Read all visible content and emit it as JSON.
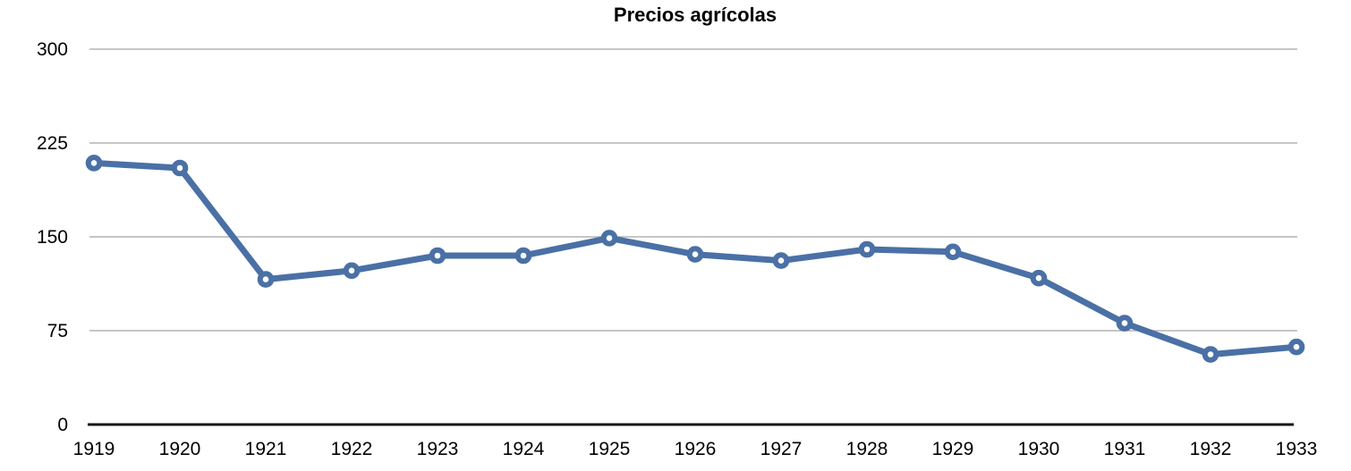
{
  "chart_data": {
    "type": "line",
    "title": "Precios agrícolas",
    "x": [
      1919,
      1920,
      1921,
      1922,
      1923,
      1924,
      1925,
      1926,
      1927,
      1928,
      1929,
      1930,
      1931,
      1932,
      1933
    ],
    "series": [
      {
        "name": "Precios agrícolas",
        "values": [
          209,
          205,
          116,
          123,
          135,
          135,
          149,
          136,
          131,
          140,
          138,
          117,
          81,
          56,
          62
        ]
      }
    ],
    "xlabel": "",
    "ylabel": "",
    "ylim": [
      0,
      300
    ],
    "yticks": [
      0,
      75,
      150,
      225,
      300
    ],
    "grid": true,
    "legend_position": "none",
    "marker_style": "open-circle",
    "colors": {
      "line": "#4a70a6",
      "marker_fill": "#ffffff",
      "gridline": "#b3b3b3",
      "axis": "#161616",
      "text": "#000000",
      "background": "#ffffff"
    }
  }
}
